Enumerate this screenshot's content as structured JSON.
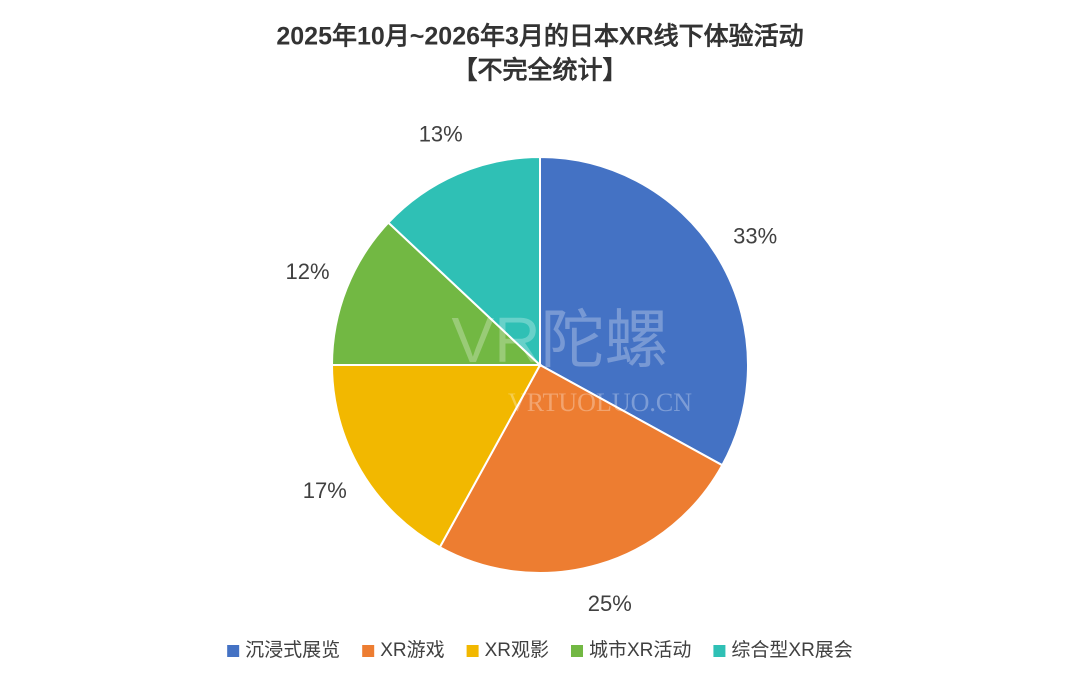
{
  "chart_data": {
    "type": "pie",
    "title": "2025年10月~2026年3月的日本XR线下体验活动",
    "subtitle": "【不完全统计】",
    "categories": [
      "沉浸式展览",
      "XR游戏",
      "XR观影",
      "城市XR活动",
      "综合型XR展会"
    ],
    "values": [
      33,
      25,
      17,
      12,
      13
    ],
    "value_labels": [
      "33%",
      "25%",
      "17%",
      "12%",
      "13%"
    ],
    "colors": [
      "#4472c4",
      "#ed7d31",
      "#f2b800",
      "#72b843",
      "#2fc0b5"
    ],
    "legend": "bottom",
    "watermark": [
      "VR陀螺",
      "VRTUOLUO.CN"
    ]
  }
}
